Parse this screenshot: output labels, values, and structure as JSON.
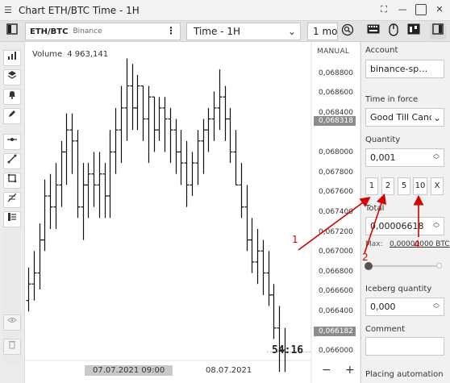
{
  "window": {
    "title": "Chart ETH/BTC Time - 1H",
    "app_icon": "chart-window-icon"
  },
  "toolbar": {
    "symbol": "ETH/BTC",
    "exchange": "Binance",
    "timeframe": "Time - 1H",
    "period": "1 mo",
    "icons": [
      "layout-menu-icon",
      "scroll-icon",
      "settings-icon",
      "panel-toggle-icon",
      "chart-type-icon",
      "search-zoom-icon"
    ]
  },
  "rail": {
    "tools": [
      "bar-chart-icon",
      "layers-icon",
      "bell-icon",
      "pencil-icon",
      "horizontal-line-icon",
      "trend-line-icon",
      "rectangle-icon",
      "fibonacci-icon",
      "list-icon",
      "eye-icon",
      "trash-icon"
    ]
  },
  "chart": {
    "volume_label": "Volume",
    "volume_value": "4 963,141",
    "mode": "MANUAL",
    "price_ticks": [
      "0,068800",
      "0,068600",
      "0,068400",
      "0,068318",
      "0,068000",
      "0,067800",
      "0,067600",
      "0,067400",
      "0,067200",
      "0,067000",
      "0,066800",
      "0,066600",
      "0,066400",
      "0,066182",
      "0,066000"
    ],
    "current_price": "0,066182",
    "cursor_price": "0,068318",
    "timer": "54:16",
    "x_labels": [
      "07.07.2021 09:00",
      "08.07.2021"
    ],
    "zoom_out": "−",
    "zoom_in": "+"
  },
  "chart_data": {
    "type": "candlestick",
    "ylim": [
      0.0659,
      0.069
    ],
    "candles": [
      {
        "h": 0.06695,
        "l": 0.06655,
        "o": 0.06665,
        "c": 0.0668
      },
      {
        "h": 0.0671,
        "l": 0.06665,
        "o": 0.0668,
        "c": 0.0669
      },
      {
        "h": 0.06735,
        "l": 0.06675,
        "o": 0.0669,
        "c": 0.0672
      },
      {
        "h": 0.06775,
        "l": 0.0671,
        "o": 0.0672,
        "c": 0.0676
      },
      {
        "h": 0.0678,
        "l": 0.0673,
        "o": 0.0676,
        "c": 0.0675
      },
      {
        "h": 0.0679,
        "l": 0.0673,
        "o": 0.0675,
        "c": 0.0677
      },
      {
        "h": 0.0681,
        "l": 0.0675,
        "o": 0.0677,
        "c": 0.068
      },
      {
        "h": 0.06835,
        "l": 0.0677,
        "o": 0.068,
        "c": 0.0682
      },
      {
        "h": 0.06835,
        "l": 0.0678,
        "o": 0.0682,
        "c": 0.0681
      },
      {
        "h": 0.0682,
        "l": 0.0674,
        "o": 0.0681,
        "c": 0.0675
      },
      {
        "h": 0.0679,
        "l": 0.0672,
        "o": 0.0675,
        "c": 0.0677
      },
      {
        "h": 0.0679,
        "l": 0.0674,
        "o": 0.0677,
        "c": 0.0678
      },
      {
        "h": 0.068,
        "l": 0.0675,
        "o": 0.0678,
        "c": 0.0677
      },
      {
        "h": 0.068,
        "l": 0.0674,
        "o": 0.0677,
        "c": 0.0678
      },
      {
        "h": 0.0679,
        "l": 0.0674,
        "o": 0.0678,
        "c": 0.0676
      },
      {
        "h": 0.0682,
        "l": 0.0674,
        "o": 0.0676,
        "c": 0.068
      },
      {
        "h": 0.0684,
        "l": 0.0678,
        "o": 0.068,
        "c": 0.0682
      },
      {
        "h": 0.0686,
        "l": 0.0679,
        "o": 0.0682,
        "c": 0.0684
      },
      {
        "h": 0.06885,
        "l": 0.0681,
        "o": 0.0684,
        "c": 0.0686
      },
      {
        "h": 0.0688,
        "l": 0.0682,
        "o": 0.0686,
        "c": 0.0684
      },
      {
        "h": 0.0687,
        "l": 0.0682,
        "o": 0.0684,
        "c": 0.0686
      },
      {
        "h": 0.0686,
        "l": 0.0681,
        "o": 0.0686,
        "c": 0.0683
      },
      {
        "h": 0.0686,
        "l": 0.0679,
        "o": 0.0683,
        "c": 0.0685
      },
      {
        "h": 0.0685,
        "l": 0.068,
        "o": 0.0685,
        "c": 0.0682
      },
      {
        "h": 0.0685,
        "l": 0.0681,
        "o": 0.0682,
        "c": 0.0684
      },
      {
        "h": 0.0685,
        "l": 0.068,
        "o": 0.0684,
        "c": 0.0683
      },
      {
        "h": 0.0684,
        "l": 0.0679,
        "o": 0.0683,
        "c": 0.0682
      },
      {
        "h": 0.0683,
        "l": 0.0678,
        "o": 0.0682,
        "c": 0.068
      },
      {
        "h": 0.0682,
        "l": 0.0677,
        "o": 0.068,
        "c": 0.0679
      },
      {
        "h": 0.0681,
        "l": 0.0675,
        "o": 0.0679,
        "c": 0.0677
      },
      {
        "h": 0.068,
        "l": 0.0676,
        "o": 0.0677,
        "c": 0.0679
      },
      {
        "h": 0.0682,
        "l": 0.0677,
        "o": 0.0679,
        "c": 0.0681
      },
      {
        "h": 0.0683,
        "l": 0.0678,
        "o": 0.0681,
        "c": 0.0682
      },
      {
        "h": 0.0684,
        "l": 0.068,
        "o": 0.0682,
        "c": 0.0683
      },
      {
        "h": 0.06855,
        "l": 0.0681,
        "o": 0.0683,
        "c": 0.0684
      },
      {
        "h": 0.06875,
        "l": 0.0682,
        "o": 0.0684,
        "c": 0.0685
      },
      {
        "h": 0.0686,
        "l": 0.0681,
        "o": 0.0685,
        "c": 0.0683
      },
      {
        "h": 0.0684,
        "l": 0.0679,
        "o": 0.0683,
        "c": 0.068
      },
      {
        "h": 0.0682,
        "l": 0.0677,
        "o": 0.068,
        "c": 0.0677
      },
      {
        "h": 0.0679,
        "l": 0.0674,
        "o": 0.0677,
        "c": 0.0675
      },
      {
        "h": 0.0677,
        "l": 0.0671,
        "o": 0.0675,
        "c": 0.0672
      },
      {
        "h": 0.0674,
        "l": 0.0669,
        "o": 0.0672,
        "c": 0.067
      },
      {
        "h": 0.0673,
        "l": 0.0668,
        "o": 0.067,
        "c": 0.0671
      },
      {
        "h": 0.0672,
        "l": 0.0667,
        "o": 0.0671,
        "c": 0.0669
      },
      {
        "h": 0.0671,
        "l": 0.0666,
        "o": 0.0669,
        "c": 0.0667
      },
      {
        "h": 0.0668,
        "l": 0.0663,
        "o": 0.0667,
        "c": 0.0664
      },
      {
        "h": 0.0666,
        "l": 0.066,
        "o": 0.0664,
        "c": 0.0662
      },
      {
        "h": 0.0664,
        "l": 0.066,
        "o": 0.0662,
        "c": 0.06618
      }
    ]
  },
  "panel": {
    "account_label": "Account",
    "account_value": "binance-sp…",
    "tif_label": "Time in force",
    "tif_value": "Good Till Canc",
    "qty_label": "Quantity",
    "qty_value": "0,001",
    "qty_presets": [
      "1",
      "2",
      "5",
      "10",
      "X"
    ],
    "total_label": "Total",
    "total_value": "0,00006618",
    "max_label": "Max:",
    "max_value": "0,00000000 BTC",
    "slider_percent": 0,
    "iceberg_label": "Iceberg quantity",
    "iceberg_value": "0,000",
    "comment_label": "Comment",
    "comment_value": "",
    "automation_label": "Placing automation"
  },
  "annotations": {
    "color": "#d60000",
    "labels": [
      "1",
      "2",
      "4"
    ]
  }
}
